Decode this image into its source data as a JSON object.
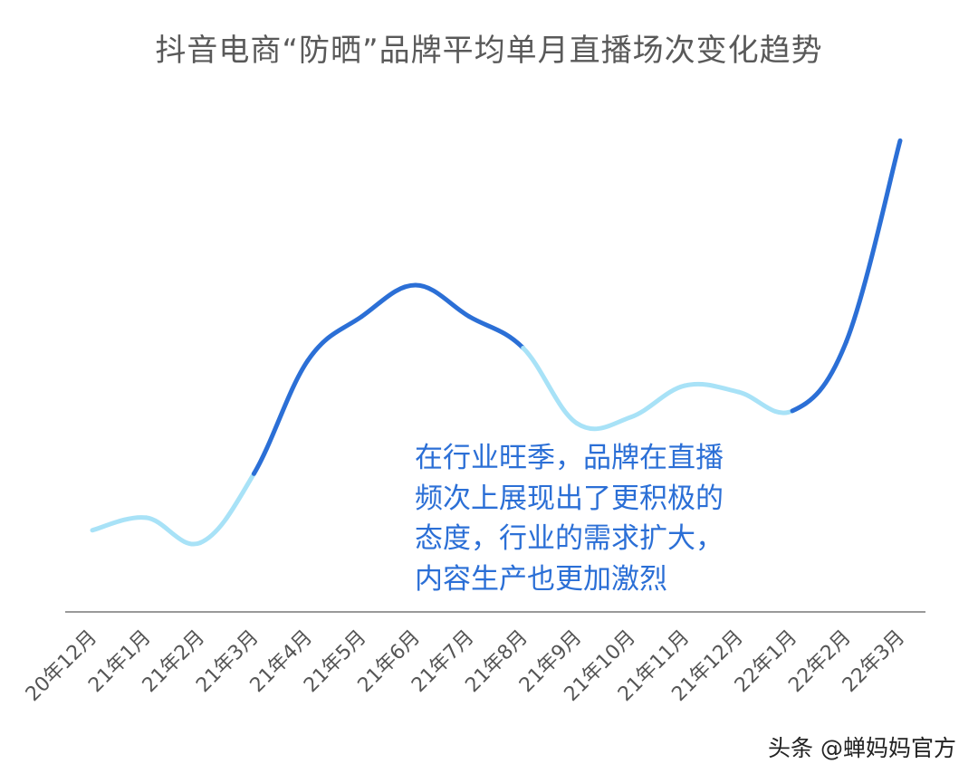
{
  "chart_data": {
    "type": "line",
    "title": "抖音电商“防晒”品牌平均单月直播场次变化趋势",
    "xlabel": "",
    "ylabel": "",
    "categories": [
      "20年12月",
      "21年1月",
      "21年2月",
      "21年3月",
      "21年4月",
      "21年5月",
      "21年6月",
      "21年7月",
      "21年8月",
      "21年9月",
      "21年10月",
      "21年11月",
      "21年12月",
      "22年1月",
      "22年2月",
      "22年3月"
    ],
    "series": [
      {
        "values": [
          13,
          15,
          11,
          22,
          40,
          47,
          52,
          47,
          42,
          30,
          31,
          36,
          35,
          32,
          43,
          75
        ],
        "highlight": [
          false,
          false,
          false,
          true,
          true,
          true,
          true,
          true,
          true,
          false,
          false,
          false,
          false,
          true,
          true,
          true
        ]
      }
    ],
    "ylim": [
      0,
      85
    ],
    "grid": false,
    "legend": "none",
    "colors": {
      "highlight": "#2b6fd6",
      "normal": "#a8e2f7",
      "axis": "#999999",
      "tick_text": "#555555"
    },
    "annotation": {
      "lines": [
        "在行业旺季，品牌在直播",
        "频次上展现出了更积极的",
        "态度，行业的需求扩大，",
        "内容生产也更加激烈"
      ]
    }
  },
  "watermark": "头条 @蝉妈妈官方"
}
